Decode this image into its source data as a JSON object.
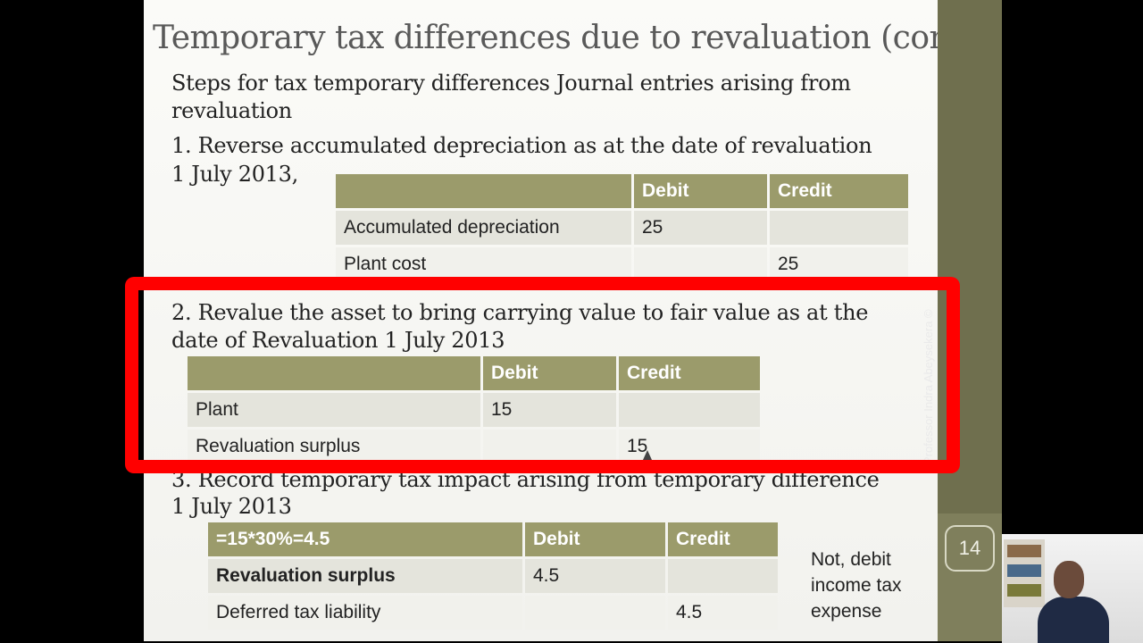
{
  "slide": {
    "title": "Temporary tax differences due to revaluation (contd",
    "intro_line1": "Steps for tax temporary differences  Journal entries arising from",
    "intro_line2": "revaluation",
    "step1_line1": "1.  Reverse accumulated depreciation as at the date of  revaluation",
    "step1_line2": "1 July 2013,",
    "step2_line1": "2.  Revalue the asset to bring carrying value to fair value as at the",
    "step2_line2": "date of Revaluation 1 July 2013",
    "step3_line1": "3. Record  temporary tax impact arising from  temporary difference",
    "step3_line2": "1 July 2013",
    "table1": {
      "headers": [
        "",
        "Debit",
        "Credit"
      ],
      "rows": [
        [
          "Accumulated depreciation",
          "25",
          ""
        ],
        [
          "Plant cost",
          "",
          "25"
        ]
      ]
    },
    "table2": {
      "headers": [
        "",
        "Debit",
        "Credit"
      ],
      "rows": [
        [
          "Plant",
          "15",
          ""
        ],
        [
          "Revaluation surplus",
          "",
          "15"
        ]
      ]
    },
    "table3": {
      "headers": [
        "=15*30%=4.5",
        "Debit",
        "Credit"
      ],
      "rows": [
        [
          "Revaluation surplus",
          "4.5",
          ""
        ],
        [
          "Deferred tax liability",
          "",
          "4.5"
        ]
      ]
    },
    "note_line1": "Not, debit",
    "note_line2": "income tax",
    "note_line3": "expense",
    "page_number": "14",
    "credit": "Professor Indra Abeysekera ©"
  },
  "colors": {
    "header_fill": "#9b9b6b",
    "sidebar": "#7f7f5c",
    "highlight": "#ff0000",
    "accent_red_text": "#c00000"
  }
}
